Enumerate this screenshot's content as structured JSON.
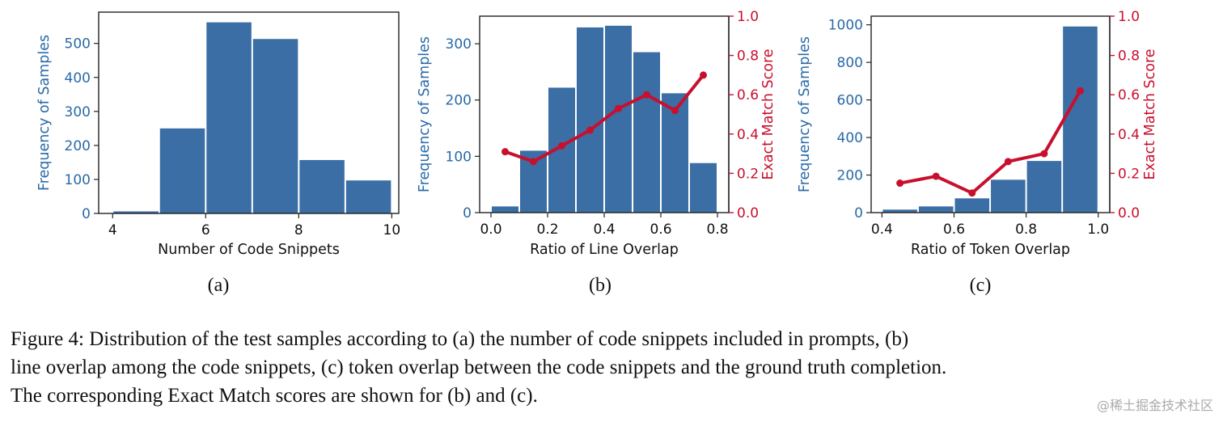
{
  "colors": {
    "bar": "#3a6ea5",
    "left_axis": "#2a6aa8",
    "line": "#c8102e",
    "axis": "#222222"
  },
  "chart_data": [
    {
      "type": "bar",
      "panel_label": "(a)",
      "xlabel": "Number of Code Snippets",
      "ylabel": "Frequency of Samples",
      "bins": [
        [
          4,
          5
        ],
        [
          5,
          6
        ],
        [
          6,
          7
        ],
        [
          7,
          8
        ],
        [
          8,
          9
        ],
        [
          9,
          10
        ]
      ],
      "values": [
        6,
        250,
        562,
        513,
        157,
        97
      ],
      "xlim": [
        3.7,
        10.15
      ],
      "ylim": [
        0,
        592
      ],
      "xticks": [
        4,
        6,
        8,
        10
      ],
      "xtick_labels": [
        "4",
        "6",
        "8",
        "10"
      ],
      "yticks": [
        0,
        100,
        200,
        300,
        400,
        500
      ],
      "ytick_labels": [
        "0",
        "100",
        "200",
        "300",
        "400",
        "500"
      ],
      "grid": false
    },
    {
      "type": "bar+line",
      "panel_label": "(b)",
      "xlabel": "Ratio of Line Overlap",
      "ylabel": "Frequency of Samples",
      "y2label": "Exact Match Score",
      "bins": [
        [
          0,
          0.1
        ],
        [
          0.1,
          0.2
        ],
        [
          0.2,
          0.3
        ],
        [
          0.3,
          0.4
        ],
        [
          0.4,
          0.5
        ],
        [
          0.5,
          0.6
        ],
        [
          0.6,
          0.7
        ],
        [
          0.7,
          0.8
        ]
      ],
      "values": [
        11,
        110,
        222,
        329,
        332,
        285,
        212,
        88
      ],
      "line_x": [
        0.05,
        0.15,
        0.25,
        0.35,
        0.45,
        0.55,
        0.65,
        0.75
      ],
      "line_y": [
        0.31,
        0.26,
        0.34,
        0.42,
        0.53,
        0.6,
        0.52,
        0.7
      ],
      "xlim": [
        -0.04,
        0.84
      ],
      "ylim": [
        0,
        349
      ],
      "y2lim": [
        0,
        1.0
      ],
      "xticks": [
        0,
        0.2,
        0.4,
        0.6,
        0.8
      ],
      "xtick_labels": [
        "0.0",
        "0.2",
        "0.4",
        "0.6",
        "0.8"
      ],
      "yticks": [
        0,
        100,
        200,
        300
      ],
      "ytick_labels": [
        "0",
        "100",
        "200",
        "300"
      ],
      "y2ticks": [
        0,
        0.2,
        0.4,
        0.6,
        0.8,
        1.0
      ],
      "y2tick_labels": [
        "0.0",
        "0.2",
        "0.4",
        "0.6",
        "0.8",
        "1.0"
      ],
      "grid": false
    },
    {
      "type": "bar+line",
      "panel_label": "(c)",
      "xlabel": "Ratio of Token Overlap",
      "ylabel": "Frequency of Samples",
      "y2label": "Exact Match Score",
      "bins": [
        [
          0.4,
          0.5
        ],
        [
          0.5,
          0.6
        ],
        [
          0.6,
          0.7
        ],
        [
          0.7,
          0.8
        ],
        [
          0.8,
          0.9
        ],
        [
          0.9,
          1.0
        ]
      ],
      "values": [
        16,
        33,
        76,
        175,
        275,
        991
      ],
      "line_x": [
        0.45,
        0.55,
        0.65,
        0.75,
        0.85,
        0.95
      ],
      "line_y": [
        0.15,
        0.185,
        0.1,
        0.26,
        0.3,
        0.62
      ],
      "xlim": [
        0.37,
        1.032
      ],
      "ylim": [
        0,
        1046
      ],
      "y2lim": [
        0,
        1.0
      ],
      "xticks": [
        0.4,
        0.6,
        0.8,
        1.0
      ],
      "xtick_labels": [
        "0.4",
        "0.6",
        "0.8",
        "1.0"
      ],
      "yticks": [
        0,
        200,
        400,
        600,
        800,
        1000
      ],
      "ytick_labels": [
        "0",
        "200",
        "400",
        "600",
        "800",
        "1000"
      ],
      "y2ticks": [
        0,
        0.2,
        0.4,
        0.6,
        0.8,
        1.0
      ],
      "y2tick_labels": [
        "0.0",
        "0.2",
        "0.4",
        "0.6",
        "0.8",
        "1.0"
      ],
      "grid": false
    }
  ],
  "caption": {
    "lines": [
      "Figure 4: Distribution of the test samples according to (a) the number of code snippets included in prompts, (b)",
      "line overlap among the code snippets, (c) token overlap between the code snippets and the ground truth completion.",
      "The corresponding Exact Match scores are shown for (b) and (c)."
    ]
  },
  "watermark": "@稀土掘金技术社区"
}
